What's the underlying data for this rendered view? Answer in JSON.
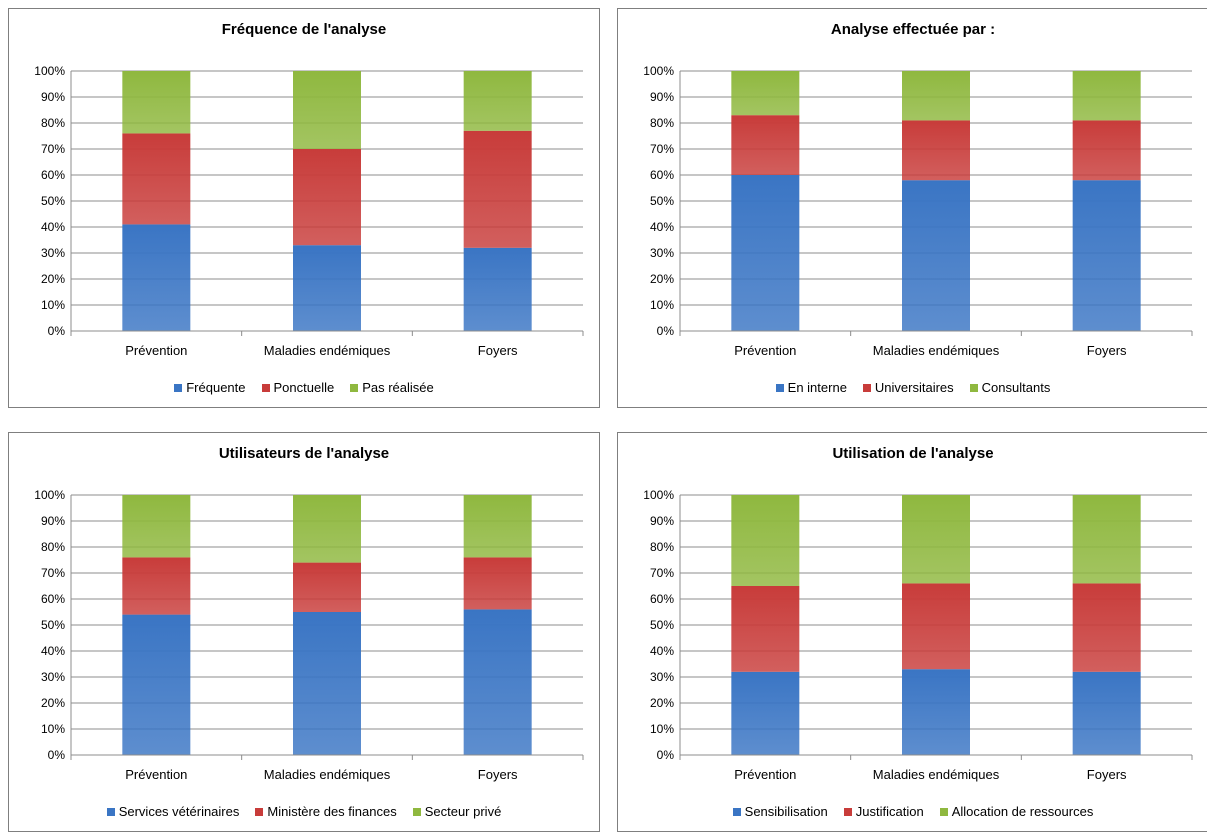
{
  "colors": {
    "blue": "#3a75c4",
    "red": "#c83c3a",
    "green": "#8fb83f"
  },
  "chart_data": [
    {
      "type": "bar",
      "stacked": true,
      "title": "Fréquence de l'analyse",
      "categories": [
        "Prévention",
        "Maladies endémiques",
        "Foyers"
      ],
      "yticks": [
        "0%",
        "10%",
        "20%",
        "30%",
        "40%",
        "50%",
        "60%",
        "70%",
        "80%",
        "90%",
        "100%"
      ],
      "ylim": [
        0,
        100
      ],
      "legend_position": "bottom",
      "series": [
        {
          "name": "Fréquente",
          "values": [
            41,
            33,
            32
          ]
        },
        {
          "name": "Ponctuelle",
          "values": [
            35,
            37,
            45
          ]
        },
        {
          "name": "Pas réalisée",
          "values": [
            24,
            30,
            23
          ]
        }
      ]
    },
    {
      "type": "bar",
      "stacked": true,
      "title": "Analyse effectuée par :",
      "categories": [
        "Prévention",
        "Maladies endémiques",
        "Foyers"
      ],
      "yticks": [
        "0%",
        "10%",
        "20%",
        "30%",
        "40%",
        "50%",
        "60%",
        "70%",
        "80%",
        "90%",
        "100%"
      ],
      "ylim": [
        0,
        100
      ],
      "legend_position": "bottom",
      "series": [
        {
          "name": "En interne",
          "values": [
            60,
            58,
            58
          ]
        },
        {
          "name": "Universitaires",
          "values": [
            23,
            23,
            23
          ]
        },
        {
          "name": "Consultants",
          "values": [
            17,
            19,
            19
          ]
        }
      ]
    },
    {
      "type": "bar",
      "stacked": true,
      "title": "Utilisateurs de l'analyse",
      "categories": [
        "Prévention",
        "Maladies endémiques",
        "Foyers"
      ],
      "yticks": [
        "0%",
        "10%",
        "20%",
        "30%",
        "40%",
        "50%",
        "60%",
        "70%",
        "80%",
        "90%",
        "100%"
      ],
      "ylim": [
        0,
        100
      ],
      "legend_position": "bottom",
      "series": [
        {
          "name": "Services vétérinaires",
          "values": [
            54,
            55,
            56
          ]
        },
        {
          "name": "Ministère des finances",
          "values": [
            22,
            19,
            20
          ]
        },
        {
          "name": "Secteur privé",
          "values": [
            24,
            26,
            24
          ]
        }
      ]
    },
    {
      "type": "bar",
      "stacked": true,
      "title": "Utilisation de l'analyse",
      "categories": [
        "Prévention",
        "Maladies endémiques",
        "Foyers"
      ],
      "yticks": [
        "0%",
        "10%",
        "20%",
        "30%",
        "40%",
        "50%",
        "60%",
        "70%",
        "80%",
        "90%",
        "100%"
      ],
      "ylim": [
        0,
        100
      ],
      "legend_position": "bottom",
      "series": [
        {
          "name": "Sensibilisation",
          "values": [
            32,
            33,
            32
          ]
        },
        {
          "name": "Justification",
          "values": [
            33,
            33,
            34
          ]
        },
        {
          "name": "Allocation de ressources",
          "values": [
            35,
            34,
            34
          ]
        }
      ]
    }
  ]
}
